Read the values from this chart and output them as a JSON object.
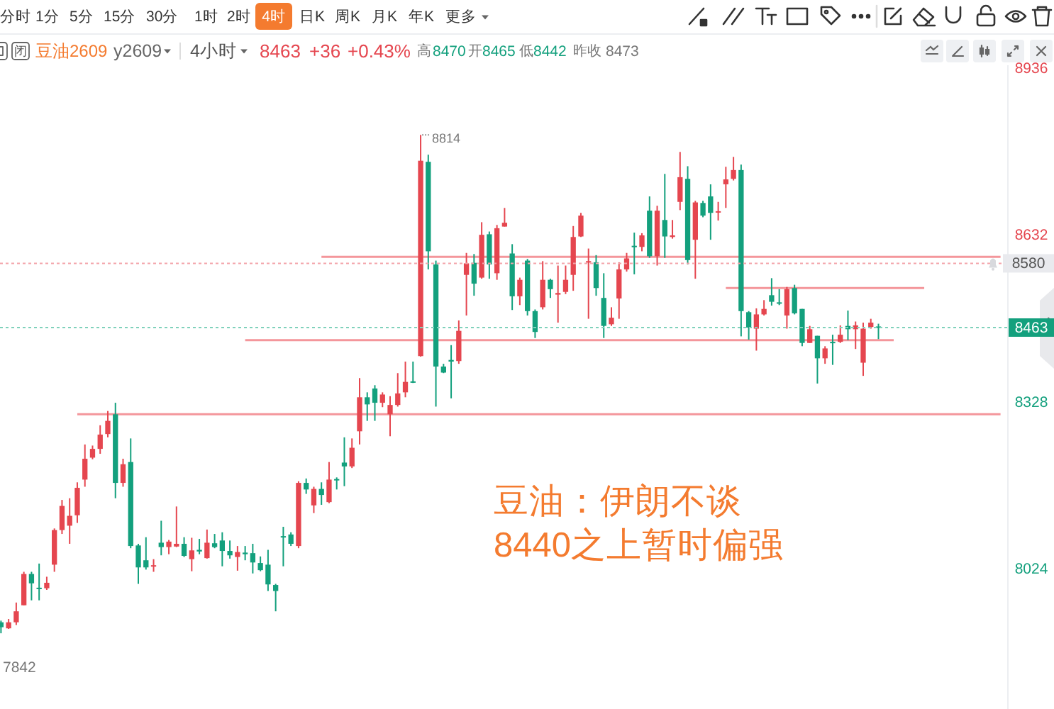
{
  "chart_data": {
    "type": "candlestick",
    "title": "豆油2609",
    "subtitle": "y2609",
    "categories": [
      null,
      null,
      null,
      null,
      null,
      null,
      null,
      null,
      null,
      null,
      null,
      null,
      null,
      null,
      null,
      null,
      null,
      null,
      null,
      null,
      null,
      null,
      null,
      null,
      null,
      null,
      null,
      null,
      null,
      null,
      null,
      null,
      null,
      null,
      null,
      null,
      null,
      null,
      null,
      null,
      null,
      null,
      null,
      null,
      null,
      null,
      null,
      null,
      null,
      null,
      null,
      null,
      null,
      null,
      null,
      null,
      null,
      null,
      null,
      null,
      null,
      null,
      null,
      null,
      null,
      null,
      null,
      null,
      null,
      null,
      null,
      null,
      null,
      null,
      null,
      null,
      null,
      null,
      null,
      null,
      null,
      null,
      null,
      null,
      null,
      null,
      null,
      null,
      null,
      null,
      null,
      null,
      null,
      null,
      null,
      null,
      null,
      null,
      null,
      null,
      null,
      null,
      null,
      null,
      null,
      null,
      null,
      null,
      null,
      null,
      null,
      null,
      null,
      null,
      null,
      null,
      null,
      null,
      null,
      null,
      null,
      null,
      null,
      null,
      null,
      null,
      null,
      null,
      null,
      null,
      null,
      null
    ],
    "ohlc": [
      [
        7926,
        7929,
        7906,
        7917
      ],
      [
        7915,
        7932,
        7914,
        7926
      ],
      [
        7926,
        7962,
        7921,
        7946
      ],
      [
        7957,
        8018,
        7957,
        8014
      ],
      [
        8014,
        8018,
        7966,
        7997
      ],
      [
        7989,
        8033,
        7966,
        7987
      ],
      [
        7988,
        8009,
        7985,
        7998
      ],
      [
        8031,
        8097,
        8018,
        8094
      ],
      [
        8094,
        8149,
        8087,
        8138
      ],
      [
        8102,
        8152,
        8069,
        8120
      ],
      [
        8121,
        8181,
        8107,
        8171
      ],
      [
        8186,
        8250,
        8173,
        8224
      ],
      [
        8226,
        8248,
        8223,
        8242
      ],
      [
        8242,
        8285,
        8233,
        8268
      ],
      [
        8269,
        8311,
        8263,
        8293
      ],
      [
        8305,
        8326,
        8152,
        8180
      ],
      [
        8180,
        8224,
        8173,
        8214
      ],
      [
        8218,
        8261,
        8061,
        8065
      ],
      [
        8066,
        8069,
        7996,
        8026
      ],
      [
        8039,
        8081,
        8022,
        8026
      ],
      [
        8028,
        8041,
        8018,
        8030
      ],
      [
        8071,
        8111,
        8048,
        8063
      ],
      [
        8063,
        8076,
        8050,
        8073
      ],
      [
        8064,
        8137,
        8063,
        8069
      ],
      [
        8069,
        8081,
        8045,
        8047
      ],
      [
        8041,
        8080,
        8019,
        8057
      ],
      [
        8058,
        8078,
        8050,
        8055
      ],
      [
        8043,
        8095,
        8042,
        8071
      ],
      [
        8070,
        8087,
        8061,
        8063
      ],
      [
        8075,
        8090,
        8028,
        8056
      ],
      [
        8056,
        8075,
        8042,
        8048
      ],
      [
        8045,
        8065,
        8020,
        8054
      ],
      [
        8053,
        8065,
        8039,
        8050
      ],
      [
        8052,
        8069,
        8015,
        8035
      ],
      [
        8034,
        8046,
        8019,
        8021
      ],
      [
        8031,
        8058,
        7983,
        7995
      ],
      [
        7994,
        7996,
        7946,
        7983
      ],
      [
        8083,
        8100,
        8028,
        8081
      ],
      [
        8086,
        8090,
        8065,
        8069
      ],
      [
        8065,
        8183,
        8061,
        8180
      ],
      [
        8180,
        8188,
        8160,
        8168
      ],
      [
        8139,
        8173,
        8125,
        8169
      ],
      [
        8169,
        8181,
        8140,
        8158
      ],
      [
        8145,
        8218,
        8143,
        8186
      ],
      [
        8187,
        8190,
        8168,
        8185
      ],
      [
        8217,
        8263,
        8174,
        8210
      ],
      [
        8210,
        8261,
        8207,
        8244
      ],
      [
        8274,
        8371,
        8250,
        8336
      ],
      [
        8336,
        8345,
        8293,
        8323
      ],
      [
        8352,
        8358,
        8293,
        8326
      ],
      [
        8326,
        8345,
        8318,
        8341
      ],
      [
        8305,
        8338,
        8265,
        8322
      ],
      [
        8322,
        8380,
        8319,
        8343
      ],
      [
        8345,
        8401,
        8336,
        8364
      ],
      [
        8365,
        8401,
        8362,
        8363
      ],
      [
        8411,
        8814,
        8410,
        8767
      ],
      [
        8765,
        8778,
        8569,
        8602
      ],
      [
        8578,
        8585,
        8319,
        8392
      ],
      [
        8392,
        8397,
        8380,
        8381
      ],
      [
        8404,
        8431,
        8334,
        8401
      ],
      [
        8402,
        8476,
        8397,
        8457
      ],
      [
        8559,
        8599,
        8485,
        8580
      ],
      [
        8581,
        8597,
        8521,
        8543
      ],
      [
        8554,
        8655,
        8552,
        8632
      ],
      [
        8633,
        8638,
        8552,
        8578
      ],
      [
        8562,
        8650,
        8550,
        8644
      ],
      [
        8647,
        8681,
        8647,
        8654
      ],
      [
        8598,
        8615,
        8495,
        8520
      ],
      [
        8520,
        8554,
        8504,
        8550
      ],
      [
        8585,
        8588,
        8485,
        8493
      ],
      [
        8493,
        8496,
        8444,
        8455
      ],
      [
        8500,
        8584,
        8496,
        8550
      ],
      [
        8550,
        8552,
        8517,
        8533
      ],
      [
        8523,
        8576,
        8472,
        8526
      ],
      [
        8528,
        8576,
        8524,
        8550
      ],
      [
        8559,
        8648,
        8530,
        8628
      ],
      [
        8629,
        8672,
        8628,
        8667
      ],
      [
        8582,
        8607,
        8479,
        8584
      ],
      [
        8582,
        8595,
        8521,
        8535
      ],
      [
        8517,
        8562,
        8444,
        8466
      ],
      [
        8469,
        8500,
        8466,
        8481
      ],
      [
        8516,
        8582,
        8479,
        8569
      ],
      [
        8569,
        8599,
        8565,
        8589
      ],
      [
        8612,
        8636,
        8560,
        8610
      ],
      [
        8610,
        8635,
        8602,
        8631
      ],
      [
        8676,
        8702,
        8590,
        8593
      ],
      [
        8593,
        8685,
        8576,
        8676
      ],
      [
        8659,
        8743,
        8590,
        8629
      ],
      [
        8628,
        8659,
        8625,
        8631
      ],
      [
        8692,
        8783,
        8677,
        8737
      ],
      [
        8734,
        8757,
        8578,
        8586
      ],
      [
        8623,
        8694,
        8552,
        8691
      ],
      [
        8690,
        8694,
        8664,
        8667
      ],
      [
        8702,
        8724,
        8623,
        8672
      ],
      [
        8673,
        8692,
        8658,
        8675
      ],
      [
        8724,
        8756,
        8681,
        8733
      ],
      [
        8734,
        8774,
        8731,
        8750
      ],
      [
        8750,
        8760,
        8447,
        8493
      ],
      [
        8491,
        8493,
        8441,
        8463
      ],
      [
        8461,
        8498,
        8421,
        8487
      ],
      [
        8487,
        8513,
        8485,
        8497
      ],
      [
        8522,
        8553,
        8503,
        8510
      ],
      [
        8509,
        8533,
        8504,
        8507
      ],
      [
        8485,
        8537,
        8461,
        8533
      ],
      [
        8535,
        8541,
        8487,
        8489
      ],
      [
        8497,
        8497,
        8429,
        8435
      ],
      [
        8435,
        8466,
        8435,
        8460
      ],
      [
        8448,
        8448,
        8361,
        8407
      ],
      [
        8407,
        8429,
        8397,
        8425
      ],
      [
        8437,
        8450,
        8395,
        8435
      ],
      [
        8437,
        8467,
        8435,
        8450
      ],
      [
        8466,
        8494,
        8440,
        8460
      ],
      [
        8460,
        8474,
        8424,
        8467
      ],
      [
        8399,
        8472,
        8375,
        8461
      ],
      [
        8464,
        8479,
        8461,
        8472
      ],
      [
        8465,
        8470,
        8442,
        8463
      ],
      null,
      null,
      null,
      null,
      null,
      null,
      null,
      null,
      null,
      null,
      null,
      null,
      null,
      null,
      null,
      null
    ],
    "colors": [
      "#13a07d",
      "#e5464f",
      "#e5464f",
      "#e5464f",
      "#13a07d",
      "#13a07d",
      "#e5464f",
      "#e5464f",
      "#e5464f",
      "#e5464f",
      "#e5464f",
      "#e5464f",
      "#e5464f",
      "#e5464f",
      "#e5464f",
      "#13a07d",
      "#e5464f",
      "#13a07d",
      "#13a07d",
      "#13a07d",
      "#e5464f",
      "#13a07d",
      "#e5464f",
      "#e5464f",
      "#13a07d",
      "#e5464f",
      "#13a07d",
      "#e5464f",
      "#13a07d",
      "#13a07d",
      "#13a07d",
      "#e5464f",
      "#13a07d",
      "#13a07d",
      "#13a07d",
      "#13a07d",
      "#13a07d",
      "#13a07d",
      "#13a07d",
      "#e5464f",
      "#13a07d",
      "#e5464f",
      "#13a07d",
      "#e5464f",
      "#13a07d",
      "#13a07d",
      "#e5464f",
      "#e5464f",
      "#13a07d",
      "#13a07d",
      "#e5464f",
      "#e5464f",
      "#e5464f",
      "#e5464f",
      "#13a07d",
      "#e5464f",
      "#13a07d",
      "#13a07d",
      "#13a07d",
      "#13a07d",
      "#e5464f",
      "#e5464f",
      "#13a07d",
      "#e5464f",
      "#13a07d",
      "#e5464f",
      "#e5464f",
      "#13a07d",
      "#e5464f",
      "#13a07d",
      "#13a07d",
      "#e5464f",
      "#13a07d",
      "#e5464f",
      "#e5464f",
      "#e5464f",
      "#e5464f",
      "#e5464f",
      "#13a07d",
      "#13a07d",
      "#e5464f",
      "#e5464f",
      "#e5464f",
      "#13a07d",
      "#e5464f",
      "#13a07d",
      "#e5464f",
      "#13a07d",
      "#e5464f",
      "#e5464f",
      "#13a07d",
      "#e5464f",
      "#13a07d",
      "#13a07d",
      "#e5464f",
      "#e5464f",
      "#e5464f",
      "#13a07d",
      "#13a07d",
      "#e5464f",
      "#e5464f",
      "#13a07d",
      "#13a07d",
      "#e5464f",
      "#13a07d",
      "#13a07d",
      "#e5464f",
      "#13a07d",
      "#e5464f",
      "#13a07d",
      "#e5464f",
      "#13a07d",
      "#e5464f",
      "#e5464f",
      "#e5464f",
      "#13a07d",
      null,
      null,
      null,
      null,
      null,
      null,
      null,
      null,
      null,
      null,
      null,
      null,
      null,
      null,
      null,
      null
    ],
    "series": [
      {
        "type": "line",
        "color": "#f4969b",
        "values": [
          null,
          null,
          null,
          null,
          null,
          null,
          null,
          null,
          null,
          null,
          8305,
          8305,
          8305,
          8305,
          8305,
          8305,
          8305,
          8305,
          8305,
          8305,
          8305,
          8305,
          8305,
          8305,
          8305,
          8305,
          8305,
          8305,
          8305,
          8305,
          8305,
          8305,
          8305,
          8305,
          8305,
          8305,
          8305,
          8305,
          8305,
          8305,
          8305,
          8305,
          8305,
          8305,
          8305,
          8305,
          8305,
          8305,
          8305,
          8305,
          8305,
          8305,
          8305,
          8305,
          8305,
          8305,
          8305,
          8305,
          8305,
          8305,
          8305,
          8305,
          8305,
          8305,
          8305,
          8305,
          8305,
          8305,
          8305,
          8305,
          8305,
          8305,
          8305,
          8305,
          8305,
          8305,
          8305,
          8305,
          8305,
          8305,
          8305,
          8305,
          8305,
          8305,
          8305,
          8305,
          8305,
          8305,
          8305,
          8305,
          8305,
          8305,
          8305,
          8305,
          8305,
          8305,
          8305,
          8305,
          8305,
          8305,
          8305,
          8305,
          8305,
          8305,
          8305,
          8305,
          8305,
          8305,
          8305,
          8305,
          8305,
          8305,
          8305,
          8305,
          8305,
          8305,
          8305,
          8305,
          8305,
          8305,
          8305,
          8305,
          8305,
          8305,
          8305,
          8305,
          8305,
          8305,
          8305,
          8305,
          8305,
          8305
        ]
      },
      {
        "type": "line",
        "color": "#f4969b",
        "values": [
          null,
          null,
          null,
          null,
          null,
          null,
          null,
          null,
          null,
          null,
          null,
          null,
          null,
          null,
          null,
          null,
          null,
          null,
          null,
          null,
          null,
          null,
          null,
          null,
          null,
          null,
          null,
          null,
          null,
          null,
          null,
          null,
          8440,
          8440,
          8440,
          8440,
          8440,
          8440,
          8440,
          8440,
          8440,
          8440,
          8440,
          8440,
          8440,
          8440,
          8440,
          8440,
          8440,
          8440,
          8440,
          8440,
          8440,
          8440,
          8440,
          8440,
          8440,
          8440,
          8440,
          8440,
          8440,
          8440,
          8440,
          8440,
          8440,
          8440,
          8440,
          8440,
          8440,
          8440,
          8440,
          8440,
          8440,
          8440,
          8440,
          8440,
          8440,
          8440,
          8440,
          8440,
          8440,
          8440,
          8440,
          8440,
          8440,
          8440,
          8440,
          8440,
          8440,
          8440,
          8440,
          8440,
          8440,
          8440,
          8440,
          8440,
          8440,
          8440,
          8440,
          8440,
          8440,
          8440,
          8440,
          8440,
          8440,
          8440,
          8440,
          8440,
          8440,
          8440,
          8440,
          8440,
          8440,
          8440,
          8440,
          8440,
          8440,
          8440,
          null,
          null,
          null,
          null,
          null,
          null,
          null,
          null,
          null,
          null,
          null,
          null,
          null,
          null
        ]
      },
      {
        "type": "line",
        "color": "#f4969b",
        "values": [
          null,
          null,
          null,
          null,
          null,
          null,
          null,
          null,
          null,
          null,
          null,
          null,
          null,
          null,
          null,
          null,
          null,
          null,
          null,
          null,
          null,
          null,
          null,
          null,
          null,
          null,
          null,
          null,
          null,
          null,
          null,
          null,
          null,
          null,
          null,
          null,
          null,
          null,
          null,
          null,
          null,
          null,
          8592,
          8592,
          8592,
          8592,
          8592,
          8592,
          8592,
          8592,
          8592,
          8592,
          8592,
          8592,
          8592,
          8592,
          8592,
          8592,
          8592,
          8592,
          8592,
          8592,
          8592,
          8592,
          8592,
          8592,
          8592,
          8592,
          8592,
          8592,
          8592,
          8592,
          8592,
          8592,
          8592,
          8592,
          8592,
          8592,
          8592,
          8592,
          8592,
          8592,
          8592,
          8592,
          8592,
          8592,
          8592,
          8592,
          8592,
          8592,
          8592,
          8592,
          8592,
          8592,
          8592,
          8592,
          8592,
          8592,
          8592,
          8592,
          8592,
          8592,
          8592,
          8592,
          8592,
          8592,
          8592,
          8592,
          8592,
          8592,
          8592,
          8592,
          8592,
          8592,
          8592,
          8592,
          8592,
          8592,
          8592,
          8592,
          8592,
          8592,
          8592,
          8592,
          8592,
          8592,
          8592,
          8592,
          8592,
          8592,
          8592,
          8592
        ]
      },
      {
        "type": "line",
        "color": "#f4969b",
        "values": [
          null,
          null,
          null,
          null,
          null,
          null,
          null,
          null,
          null,
          null,
          null,
          null,
          null,
          null,
          null,
          null,
          null,
          null,
          null,
          null,
          null,
          null,
          null,
          null,
          null,
          null,
          null,
          null,
          null,
          null,
          null,
          null,
          null,
          null,
          null,
          null,
          null,
          null,
          null,
          null,
          null,
          null,
          null,
          null,
          null,
          null,
          null,
          null,
          null,
          null,
          null,
          null,
          null,
          null,
          null,
          null,
          null,
          null,
          null,
          null,
          null,
          null,
          null,
          null,
          null,
          null,
          null,
          null,
          null,
          null,
          null,
          null,
          null,
          null,
          null,
          null,
          null,
          null,
          null,
          null,
          null,
          null,
          null,
          null,
          null,
          null,
          null,
          null,
          null,
          null,
          null,
          null,
          null,
          null,
          null,
          8535,
          8535,
          8535,
          8535,
          8535,
          8535,
          8535,
          8535,
          8535,
          8535,
          8535,
          8535,
          8535,
          8535,
          8535,
          8535,
          8535,
          8535,
          8535,
          8535,
          8535,
          8535,
          8535,
          8535,
          8535,
          8535,
          8535,
          null,
          null,
          null,
          null,
          null,
          null,
          null,
          null,
          null,
          null
        ]
      }
    ],
    "ylim": [
      7768,
      8941
    ],
    "yticks": [
      8936,
      8632,
      8328,
      8024
    ],
    "tick_labels": "y",
    "ref_lines": [
      {
        "axis": "y",
        "value": 8580,
        "label": "8580",
        "color": "#f3a3aa",
        "line_style": "dotted"
      },
      {
        "axis": "y",
        "value": 8463,
        "label": "8463",
        "color": "#7fd1bb",
        "line_style": "dotted"
      }
    ],
    "annotations": [
      "分时",
      "1分",
      "5分",
      "15分",
      "30分",
      "1时",
      "2时",
      "4时",
      "日K",
      "周K",
      "月K",
      "年K",
      "更多",
      "闭",
      "4小时",
      "8463",
      "+36",
      "+0.43%",
      "高",
      "8470",
      "开",
      "8465",
      "低",
      "8442",
      "昨收",
      "8473",
      "豆油：伊朗不谈",
      "8440之上暂时偏强",
      "8814",
      "7842"
    ]
  }
}
